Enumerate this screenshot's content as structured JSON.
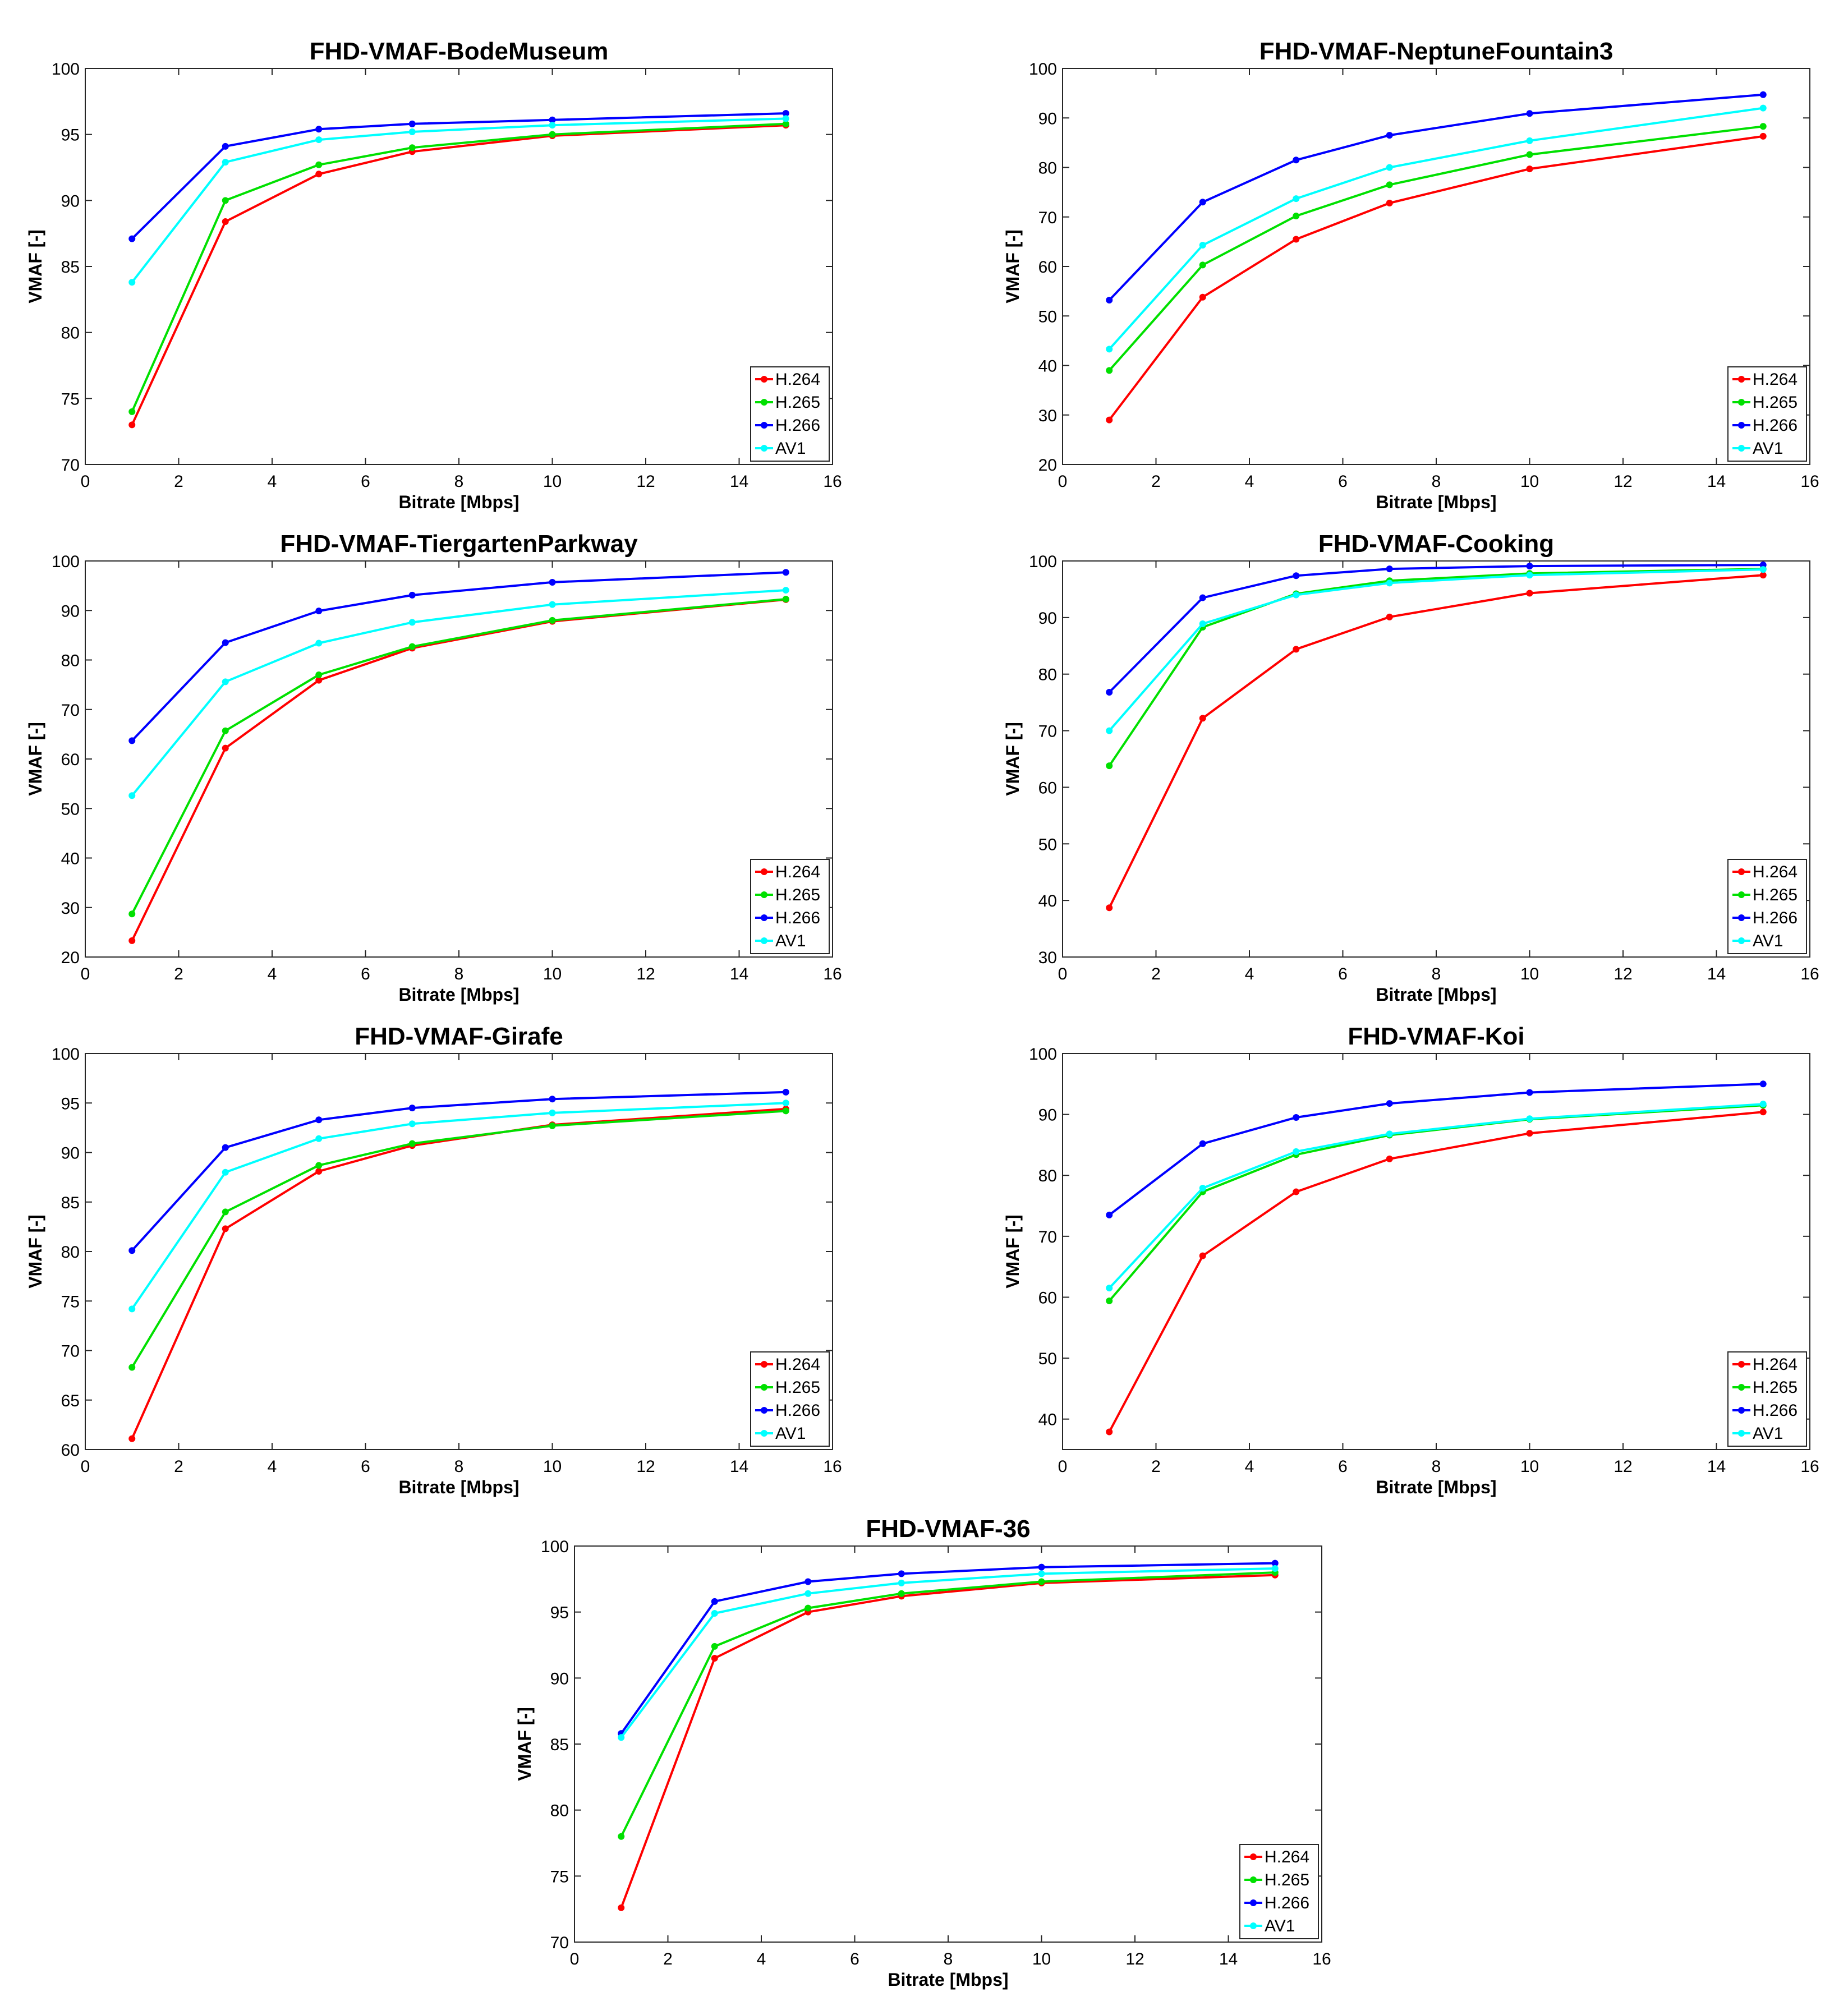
{
  "colors": {
    "H.264": "#ff0000",
    "H.265": "#00e000",
    "H.266": "#0000ff",
    "AV1": "#00ffff"
  },
  "chart_data": [
    {
      "type": "line",
      "title": "FHD-VMAF-BodeMuseum",
      "xlabel": "Bitrate [Mbps]",
      "ylabel": "VMAF [-]",
      "xlim": [
        0,
        16
      ],
      "ylim": [
        70,
        100
      ],
      "xticks": [
        "0",
        "2",
        "4",
        "6",
        "8",
        "10",
        "12",
        "14",
        "16"
      ],
      "yticks": [
        "70",
        "75",
        "80",
        "85",
        "90",
        "95",
        "100"
      ],
      "legend": "bottom-right",
      "x": [
        1,
        3,
        5,
        7,
        10,
        15
      ],
      "series": [
        {
          "name": "H.264",
          "values": [
            73.0,
            88.4,
            92.0,
            93.7,
            94.9,
            95.7
          ]
        },
        {
          "name": "H.265",
          "values": [
            74.0,
            90.0,
            92.7,
            94.0,
            95.0,
            95.8
          ]
        },
        {
          "name": "H.266",
          "values": [
            87.1,
            94.1,
            95.4,
            95.8,
            96.1,
            96.6
          ]
        },
        {
          "name": "AV1",
          "values": [
            83.8,
            92.9,
            94.6,
            95.2,
            95.7,
            96.2
          ]
        }
      ]
    },
    {
      "type": "line",
      "title": "FHD-VMAF-NeptuneFountain3",
      "xlabel": "Bitrate [Mbps]",
      "ylabel": "VMAF [-]",
      "xlim": [
        0,
        16
      ],
      "ylim": [
        20,
        100
      ],
      "xticks": [
        "0",
        "2",
        "4",
        "6",
        "8",
        "10",
        "12",
        "14",
        "16"
      ],
      "yticks": [
        "20",
        "30",
        "40",
        "50",
        "60",
        "70",
        "80",
        "90",
        "100"
      ],
      "legend": "bottom-right",
      "x": [
        1,
        3,
        5,
        7,
        10,
        15
      ],
      "series": [
        {
          "name": "H.264",
          "values": [
            29.0,
            53.8,
            65.5,
            72.8,
            79.7,
            86.3
          ]
        },
        {
          "name": "H.265",
          "values": [
            39.0,
            60.3,
            70.2,
            76.5,
            82.6,
            88.3
          ]
        },
        {
          "name": "H.266",
          "values": [
            53.2,
            73.0,
            81.5,
            86.5,
            90.9,
            94.7
          ]
        },
        {
          "name": "AV1",
          "values": [
            43.3,
            64.3,
            73.7,
            80.0,
            85.4,
            92.0
          ]
        }
      ]
    },
    {
      "type": "line",
      "title": "FHD-VMAF-TiergartenParkway",
      "xlabel": "Bitrate [Mbps]",
      "ylabel": "VMAF [-]",
      "xlim": [
        0,
        16
      ],
      "ylim": [
        20,
        100
      ],
      "xticks": [
        "0",
        "2",
        "4",
        "6",
        "8",
        "10",
        "12",
        "14",
        "16"
      ],
      "yticks": [
        "20",
        "30",
        "40",
        "50",
        "60",
        "70",
        "80",
        "90",
        "100"
      ],
      "legend": "bottom-right",
      "x": [
        1,
        3,
        5,
        7,
        10,
        15
      ],
      "series": [
        {
          "name": "H.264",
          "values": [
            23.3,
            62.2,
            75.9,
            82.4,
            87.8,
            92.2
          ]
        },
        {
          "name": "H.265",
          "values": [
            28.7,
            65.7,
            77.0,
            82.7,
            88.0,
            92.3
          ]
        },
        {
          "name": "H.266",
          "values": [
            63.7,
            83.5,
            89.9,
            93.1,
            95.7,
            97.7
          ]
        },
        {
          "name": "AV1",
          "values": [
            52.6,
            75.6,
            83.4,
            87.6,
            91.2,
            94.1
          ]
        }
      ]
    },
    {
      "type": "line",
      "title": "FHD-VMAF-Cooking",
      "xlabel": "Bitrate [Mbps]",
      "ylabel": "VMAF [-]",
      "xlim": [
        0,
        16
      ],
      "ylim": [
        30,
        100
      ],
      "xticks": [
        "0",
        "2",
        "4",
        "6",
        "8",
        "10",
        "12",
        "14",
        "16"
      ],
      "yticks": [
        "30",
        "40",
        "50",
        "60",
        "70",
        "80",
        "90",
        "100"
      ],
      "legend": "bottom-right",
      "x": [
        1,
        3,
        5,
        7,
        10,
        15
      ],
      "series": [
        {
          "name": "H.264",
          "values": [
            38.7,
            72.2,
            84.4,
            90.1,
            94.3,
            97.5
          ]
        },
        {
          "name": "H.265",
          "values": [
            63.8,
            88.3,
            94.2,
            96.5,
            97.8,
            98.6
          ]
        },
        {
          "name": "H.266",
          "values": [
            76.8,
            93.5,
            97.4,
            98.6,
            99.1,
            99.3
          ]
        },
        {
          "name": "AV1",
          "values": [
            70.0,
            88.9,
            94.0,
            96.1,
            97.5,
            98.5
          ]
        }
      ]
    },
    {
      "type": "line",
      "title": "FHD-VMAF-Girafe",
      "xlabel": "Bitrate [Mbps]",
      "ylabel": "VMAF [-]",
      "xlim": [
        0,
        16
      ],
      "ylim": [
        60,
        100
      ],
      "xticks": [
        "0",
        "2",
        "4",
        "6",
        "8",
        "10",
        "12",
        "14",
        "16"
      ],
      "yticks": [
        "60",
        "65",
        "70",
        "75",
        "80",
        "85",
        "90",
        "95",
        "100"
      ],
      "legend": "bottom-right",
      "x": [
        1,
        3,
        5,
        7,
        10,
        15
      ],
      "series": [
        {
          "name": "H.264",
          "values": [
            61.1,
            82.3,
            88.1,
            90.7,
            92.8,
            94.4
          ]
        },
        {
          "name": "H.265",
          "values": [
            68.3,
            84.0,
            88.7,
            90.9,
            92.7,
            94.2
          ]
        },
        {
          "name": "H.266",
          "values": [
            80.1,
            90.5,
            93.3,
            94.5,
            95.4,
            96.1
          ]
        },
        {
          "name": "AV1",
          "values": [
            74.2,
            88.0,
            91.4,
            92.9,
            94.0,
            95.0
          ]
        }
      ]
    },
    {
      "type": "line",
      "title": "FHD-VMAF-Koi",
      "xlabel": "Bitrate [Mbps]",
      "ylabel": "VMAF [-]",
      "xlim": [
        0,
        16
      ],
      "ylim": [
        35,
        100
      ],
      "xticks": [
        "0",
        "2",
        "4",
        "6",
        "8",
        "10",
        "12",
        "14",
        "16"
      ],
      "yticks": [
        "40",
        "50",
        "60",
        "70",
        "80",
        "90",
        "100"
      ],
      "legend": "bottom-right",
      "x": [
        1,
        3,
        5,
        7,
        10,
        15
      ],
      "series": [
        {
          "name": "H.264",
          "values": [
            37.9,
            66.8,
            77.3,
            82.7,
            86.9,
            90.4
          ]
        },
        {
          "name": "H.265",
          "values": [
            59.4,
            77.3,
            83.4,
            86.6,
            89.2,
            91.5
          ]
        },
        {
          "name": "H.266",
          "values": [
            73.5,
            85.2,
            89.5,
            91.8,
            93.6,
            95.0
          ]
        },
        {
          "name": "AV1",
          "values": [
            61.5,
            77.9,
            83.9,
            86.8,
            89.3,
            91.7
          ]
        }
      ]
    },
    {
      "type": "line",
      "title": "FHD-VMAF-36",
      "xlabel": "Bitrate [Mbps]",
      "ylabel": "VMAF [-]",
      "xlim": [
        0,
        16
      ],
      "ylim": [
        70,
        100
      ],
      "xticks": [
        "0",
        "2",
        "4",
        "6",
        "8",
        "10",
        "12",
        "14",
        "16"
      ],
      "yticks": [
        "70",
        "75",
        "80",
        "85",
        "90",
        "95",
        "100"
      ],
      "legend": "bottom-right",
      "x": [
        1,
        3,
        5,
        7,
        10,
        15
      ],
      "series": [
        {
          "name": "H.264",
          "values": [
            72.6,
            91.5,
            95.0,
            96.2,
            97.2,
            97.8
          ]
        },
        {
          "name": "H.265",
          "values": [
            78.0,
            92.4,
            95.3,
            96.4,
            97.3,
            98.0
          ]
        },
        {
          "name": "H.266",
          "values": [
            85.8,
            95.8,
            97.3,
            97.9,
            98.4,
            98.7
          ]
        },
        {
          "name": "AV1",
          "values": [
            85.5,
            94.9,
            96.4,
            97.2,
            97.9,
            98.3
          ]
        }
      ]
    }
  ]
}
